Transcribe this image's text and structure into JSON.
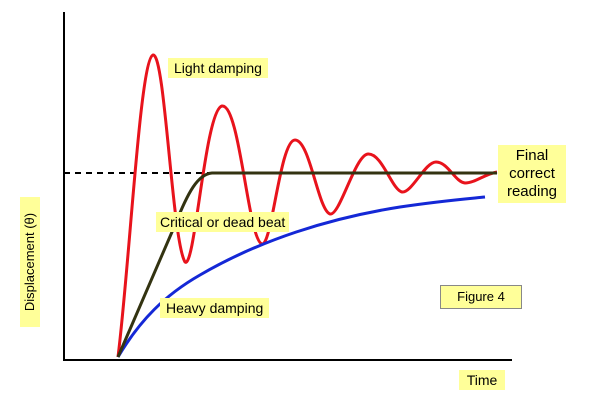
{
  "figure": {
    "y_axis_label": "Displacement (θ)",
    "x_axis_label": "Time",
    "figure_label": "Figure 4",
    "final_reading_lines": [
      "Final",
      "correct",
      "reading"
    ],
    "curves": [
      {
        "name": "Light damping",
        "color": "#e8131c"
      },
      {
        "name": "Critical or dead beat",
        "color": "#333311"
      },
      {
        "name": "Heavy damping",
        "color": "#1428d6"
      }
    ],
    "final_reading_line_style": "dashed",
    "label_background": "#ffff99"
  }
}
